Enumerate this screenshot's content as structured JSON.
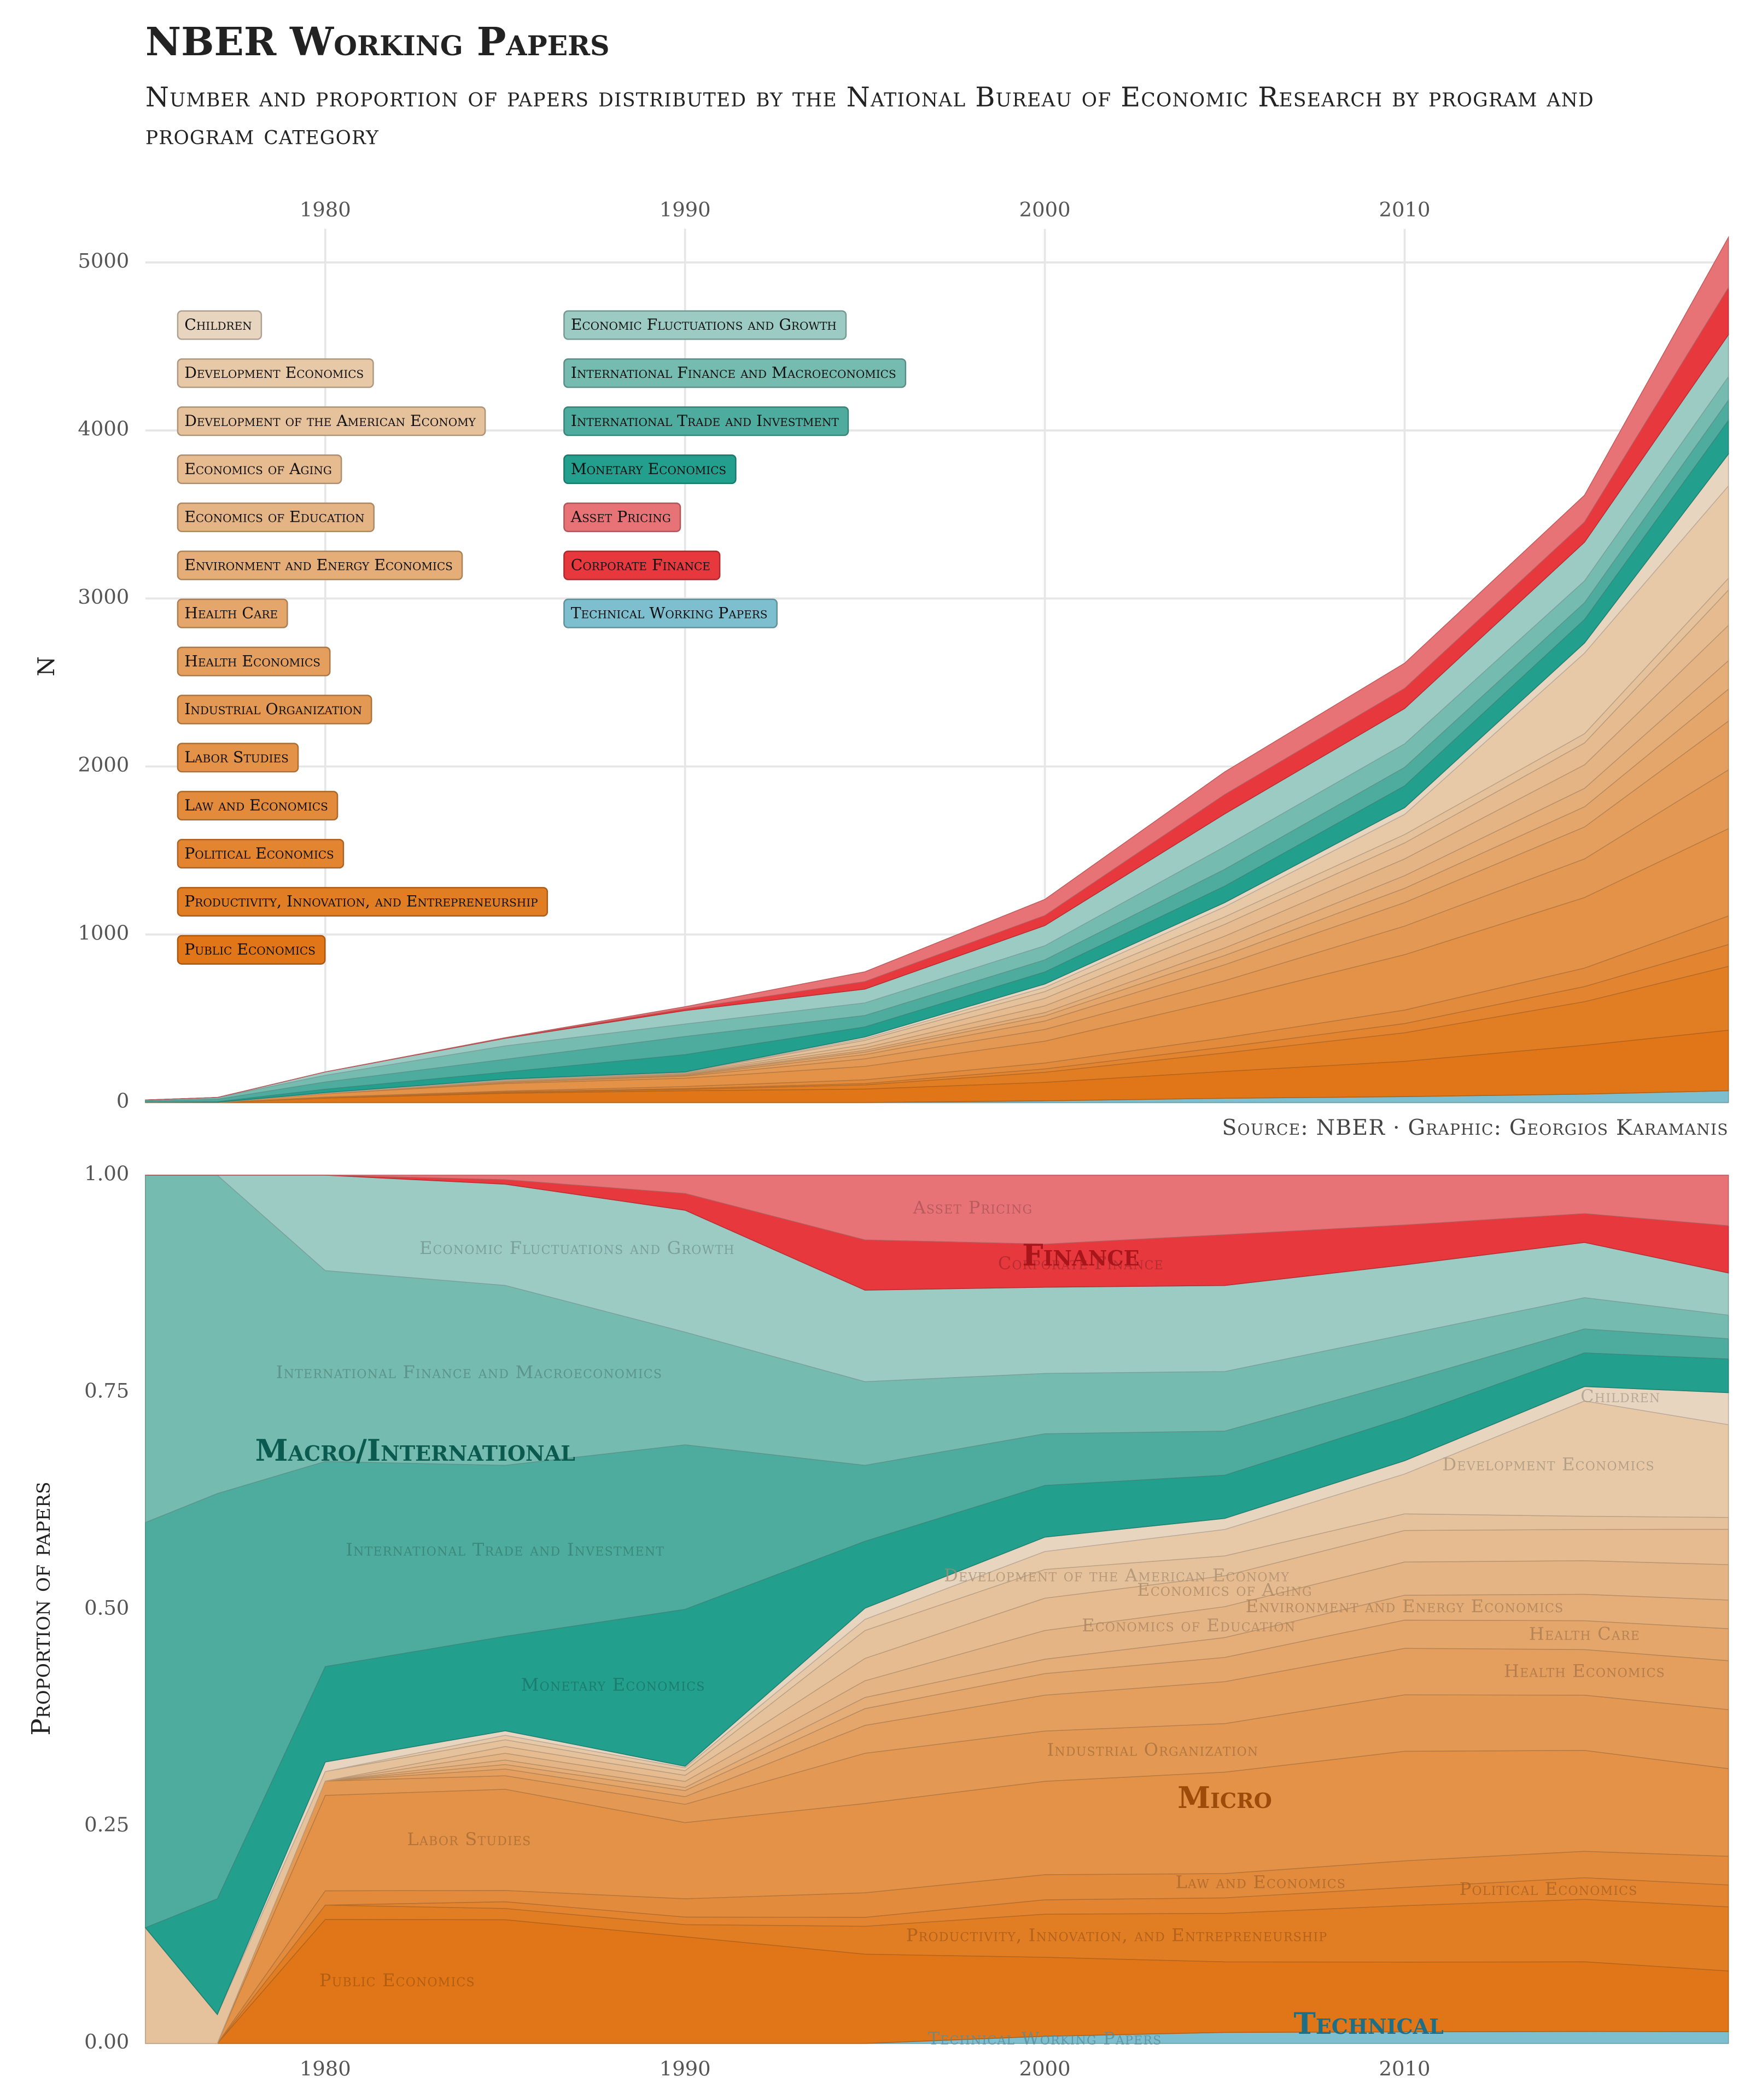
{
  "title": "NBER Working Papers",
  "subtitle": "Number and proportion of papers distributed by the National Bureau of Economic Research by program and program category",
  "source": "Source: NBER · Graphic: Georgios Karamanis",
  "chart_data": [
    {
      "type": "stacked_area",
      "ylabel": "N",
      "x": [
        1975,
        1977,
        1980,
        1985,
        1990,
        1995,
        2000,
        2005,
        2010,
        2015,
        2019
      ],
      "xlim": [
        1975,
        2019
      ],
      "xticks": [
        1980,
        1990,
        2000,
        2010
      ],
      "ylim": [
        0,
        5200
      ],
      "yticks": [
        0,
        1000,
        2000,
        3000,
        4000,
        5000
      ],
      "grid": true,
      "series": [
        {
          "name": "Technical Working Papers",
          "color": "#7dbfcf",
          "values": [
            0,
            0,
            0,
            0,
            0,
            0,
            10,
            25,
            35,
            50,
            70
          ]
        },
        {
          "name": "Public Economics",
          "color": "#e07617",
          "values": [
            0,
            0,
            26,
            55,
            70,
            80,
            110,
            160,
            210,
            290,
            360
          ]
        },
        {
          "name": "Productivity, Innovation, and Entrepreneurship",
          "color": "#e17d23",
          "values": [
            0,
            0,
            3,
            5,
            8,
            25,
            60,
            110,
            170,
            260,
            380
          ]
        },
        {
          "name": "Political Economics",
          "color": "#e28430",
          "values": [
            0,
            0,
            0,
            3,
            5,
            8,
            20,
            35,
            55,
            90,
            130
          ]
        },
        {
          "name": "Law and Economics",
          "color": "#e28b3c",
          "values": [
            0,
            0,
            3,
            5,
            12,
            22,
            35,
            55,
            80,
            110,
            170
          ]
        },
        {
          "name": "Labor Studies",
          "color": "#e39248",
          "values": [
            0,
            0,
            20,
            45,
            50,
            80,
            130,
            230,
            330,
            420,
            520
          ]
        },
        {
          "name": "Industrial Organization",
          "color": "#e39953",
          "values": [
            0,
            0,
            3,
            6,
            12,
            45,
            70,
            110,
            170,
            230,
            350
          ]
        },
        {
          "name": "Health Economics",
          "color": "#e49f5f",
          "values": [
            0,
            0,
            0,
            3,
            5,
            25,
            50,
            95,
            140,
            190,
            290
          ]
        },
        {
          "name": "Health Care",
          "color": "#e4a66b",
          "values": [
            0,
            0,
            0,
            2,
            4,
            15,
            30,
            55,
            85,
            120,
            190
          ]
        },
        {
          "name": "Environment and Energy Economics",
          "color": "#e5ad77",
          "values": [
            0,
            0,
            0,
            2,
            2,
            10,
            20,
            45,
            75,
            110,
            170
          ]
        },
        {
          "name": "Economics of Education",
          "color": "#e5b484",
          "values": [
            0,
            0,
            0,
            3,
            4,
            15,
            40,
            70,
            100,
            140,
            210
          ]
        },
        {
          "name": "Economics of Aging",
          "color": "#e6bb8f",
          "values": [
            0,
            0,
            0,
            3,
            4,
            20,
            45,
            70,
            95,
            130,
            210
          ]
        },
        {
          "name": "Development of the American Economy",
          "color": "#e6c29c",
          "values": [
            2,
            1,
            2,
            3,
            3,
            25,
            40,
            45,
            50,
            55,
            70
          ]
        },
        {
          "name": "Development Economics",
          "color": "#e7c9a8",
          "values": [
            0,
            0,
            0,
            2,
            2,
            10,
            25,
            60,
            120,
            480,
            550
          ]
        },
        {
          "name": "Children",
          "color": "#e8d5c0",
          "values": [
            0,
            0,
            2,
            2,
            1,
            10,
            20,
            25,
            40,
            60,
            190
          ]
        },
        {
          "name": "Monetary Economics",
          "color": "#239f8d",
          "values": [
            0,
            4,
            20,
            42,
            103,
            60,
            72,
            98,
            130,
            140,
            200
          ]
        },
        {
          "name": "International Trade and Investment",
          "color": "#4dac9e",
          "values": [
            7,
            14,
            43,
            76,
            108,
            68,
            72,
            100,
            110,
            100,
            120
          ]
        },
        {
          "name": "International Finance and Macroeconomics",
          "color": "#75bbb0",
          "values": [
            6,
            11,
            40,
            80,
            74,
            75,
            84,
            135,
            140,
            130,
            140
          ]
        },
        {
          "name": "Economic Fluctuations and Growth",
          "color": "#9ccbc4",
          "values": [
            0,
            0,
            20,
            45,
            80,
            82,
            120,
            195,
            210,
            230,
            250
          ]
        },
        {
          "name": "Corporate Finance",
          "color": "#e6383d",
          "values": [
            0,
            0,
            0,
            2,
            11,
            45,
            60,
            115,
            120,
            120,
            280
          ]
        },
        {
          "name": "Asset Pricing",
          "color": "#e87376",
          "values": [
            0,
            0,
            0,
            2,
            12,
            58,
            96,
            135,
            150,
            160,
            300
          ]
        }
      ]
    },
    {
      "type": "stacked_proportion",
      "ylabel": "Proportion of papers",
      "xlim": [
        1975,
        2019
      ],
      "xticks": [
        1980,
        1990,
        2000,
        2010
      ],
      "ylim": [
        0,
        1
      ],
      "yticks": [
        {
          "value": 0,
          "label": "0.00"
        },
        0.25,
        {
          "value": 0.5,
          "label": "0.50"
        },
        0.75,
        {
          "value": 1,
          "label": "1.00"
        }
      ],
      "groups": [
        {
          "name": "Finance",
          "color": "#a8161b"
        },
        {
          "name": "Macro/International",
          "color": "#0b5a4f"
        },
        {
          "name": "Micro",
          "color": "#9c4c08"
        },
        {
          "name": "Technical",
          "color": "#1e6f85"
        }
      ]
    }
  ]
}
